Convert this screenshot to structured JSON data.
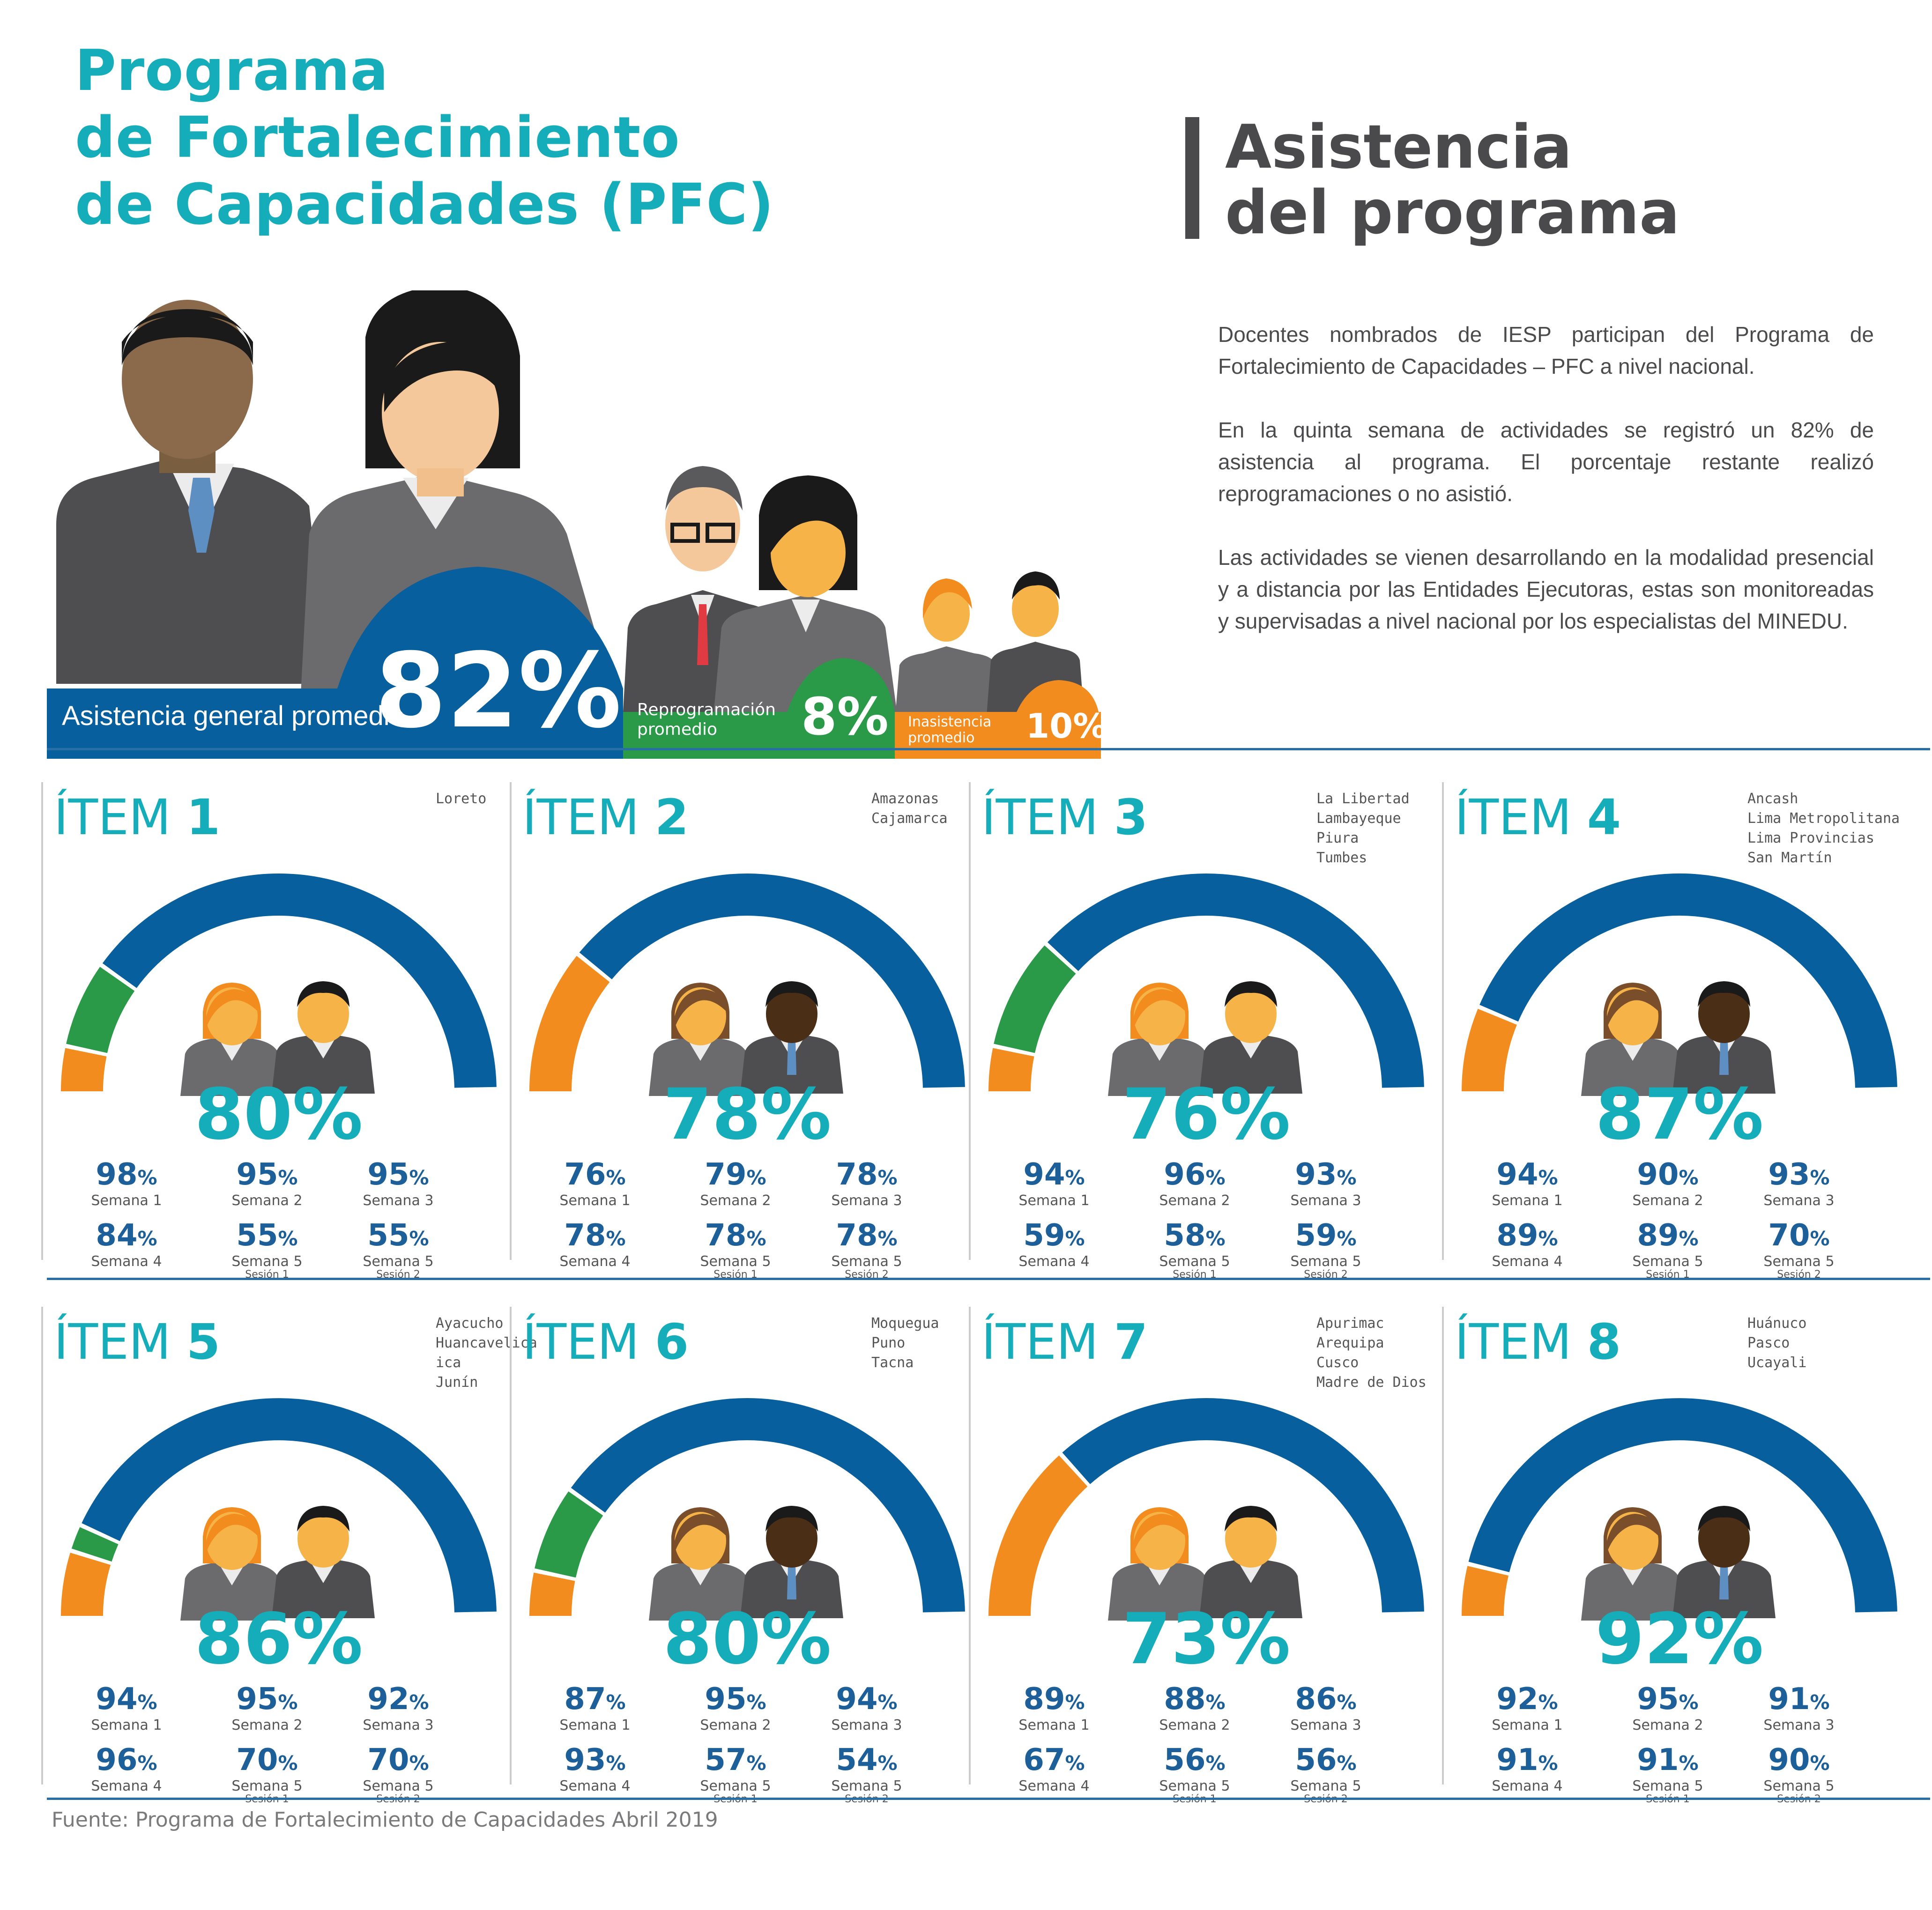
{
  "header": {
    "title_lines": [
      "Programa",
      "de Fortalecimiento",
      "de Capacidades (PFC)"
    ],
    "side_title_lines": [
      "Asistencia",
      "del programa"
    ]
  },
  "intro": [
    "Docentes nombrados de IESP participan del Programa de Fortalecimiento de Capacidades – PFC a nivel nacional.",
    "En la quinta semana de actividades se registró un 82% de asistencia al programa. El porcentaje restante realizó reprogramaciones o no asistió.",
    "Las actividades se vienen desarrollando en la modalidad presencial y a distancia por las Entidades Ejecutoras, estas son monitoreadas y supervisadas a nivel nacional por los especialistas del MINEDU."
  ],
  "summary": {
    "asistencia": {
      "label": "Asistencia general promedio",
      "value": "82%"
    },
    "reprogramacion": {
      "label_lines": [
        "Reprogramación",
        "promedio"
      ],
      "value": "8%"
    },
    "inasistencia": {
      "label_lines": [
        "Inasistencia",
        "promedio"
      ],
      "value": "10%"
    }
  },
  "colors": {
    "teal": "#15adb9",
    "blue": "#075f9d",
    "green": "#2a9a48",
    "orange": "#f28c1e",
    "dark_gray": "#4a4a4c"
  },
  "item_word": "ÍTEM",
  "items": [
    {
      "num": "1",
      "regions": [
        "Loreto"
      ],
      "total": "80%",
      "gauge": {
        "asistencia": 0.8,
        "reprogramacion": 0.13,
        "inasistencia": 0.07
      },
      "stats": [
        {
          "v": "98",
          "l": "Semana 1",
          "s": ""
        },
        {
          "v": "95",
          "l": "Semana 2",
          "s": ""
        },
        {
          "v": "95",
          "l": "Semana 3",
          "s": ""
        },
        {
          "v": "84",
          "l": "Semana 4",
          "s": ""
        },
        {
          "v": "55",
          "l": "Semana 5",
          "s": "Sesión 1"
        },
        {
          "v": "55",
          "l": "Semana 5",
          "s": "Sesión 2"
        }
      ]
    },
    {
      "num": "2",
      "regions": [
        "Amazonas",
        "Cajamarca"
      ],
      "total": "78%",
      "gauge": {
        "asistencia": 0.78,
        "reprogramacion": 0.0,
        "inasistencia": 0.22
      },
      "stats": [
        {
          "v": "76",
          "l": "Semana 1",
          "s": ""
        },
        {
          "v": "79",
          "l": "Semana 2",
          "s": ""
        },
        {
          "v": "78",
          "l": "Semana 3",
          "s": ""
        },
        {
          "v": "78",
          "l": "Semana 4",
          "s": ""
        },
        {
          "v": "78",
          "l": "Semana 5",
          "s": "Sesión 1"
        },
        {
          "v": "78",
          "l": "Semana 5",
          "s": "Sesión 2"
        }
      ]
    },
    {
      "num": "3",
      "regions": [
        "La Libertad",
        "Lambayeque",
        "Piura",
        "Tumbes"
      ],
      "total": "76%",
      "gauge": {
        "asistencia": 0.76,
        "reprogramacion": 0.17,
        "inasistencia": 0.07
      },
      "stats": [
        {
          "v": "94",
          "l": "Semana 1",
          "s": ""
        },
        {
          "v": "96",
          "l": "Semana 2",
          "s": ""
        },
        {
          "v": "93",
          "l": "Semana 3",
          "s": ""
        },
        {
          "v": "59",
          "l": "Semana 4",
          "s": ""
        },
        {
          "v": "58",
          "l": "Semana 5",
          "s": "Sesión 1"
        },
        {
          "v": "59",
          "l": "Semana 5",
          "s": "Sesión 2"
        }
      ]
    },
    {
      "num": "4",
      "regions": [
        "Ancash",
        "Lima Metropolitana",
        "Lima Provincias",
        "San Martín"
      ],
      "total": "87%",
      "gauge": {
        "asistencia": 0.87,
        "reprogramacion": 0.0,
        "inasistencia": 0.13
      },
      "stats": [
        {
          "v": "94",
          "l": "Semana 1",
          "s": ""
        },
        {
          "v": "90",
          "l": "Semana 2",
          "s": ""
        },
        {
          "v": "93",
          "l": "Semana 3",
          "s": ""
        },
        {
          "v": "89",
          "l": "Semana 4",
          "s": ""
        },
        {
          "v": "89",
          "l": "Semana 5",
          "s": "Sesión 1"
        },
        {
          "v": "70",
          "l": "Semana 5",
          "s": "Sesión 2"
        }
      ]
    },
    {
      "num": "5",
      "regions": [
        "Ayacucho",
        "Huancavelica",
        "ica",
        "Junín"
      ],
      "total": "86%",
      "gauge": {
        "asistencia": 0.86,
        "reprogramacion": 0.04,
        "inasistencia": 0.1
      },
      "stats": [
        {
          "v": "94",
          "l": "Semana 1",
          "s": ""
        },
        {
          "v": "95",
          "l": "Semana 2",
          "s": ""
        },
        {
          "v": "92",
          "l": "Semana 3",
          "s": ""
        },
        {
          "v": "96",
          "l": "Semana 4",
          "s": ""
        },
        {
          "v": "70",
          "l": "Semana 5",
          "s": "Sesión 1"
        },
        {
          "v": "70",
          "l": "Semana 5",
          "s": "Sesión 2"
        }
      ]
    },
    {
      "num": "6",
      "regions": [
        "Moquegua",
        "Puno",
        "Tacna"
      ],
      "total": "80%",
      "gauge": {
        "asistencia": 0.8,
        "reprogramacion": 0.13,
        "inasistencia": 0.07
      },
      "stats": [
        {
          "v": "87",
          "l": "Semana 1",
          "s": ""
        },
        {
          "v": "95",
          "l": "Semana 2",
          "s": ""
        },
        {
          "v": "94",
          "l": "Semana 3",
          "s": ""
        },
        {
          "v": "93",
          "l": "Semana 4",
          "s": ""
        },
        {
          "v": "57",
          "l": "Semana 5",
          "s": "Sesión 1"
        },
        {
          "v": "54",
          "l": "Semana 5",
          "s": "Sesión 2"
        }
      ]
    },
    {
      "num": "7",
      "regions": [
        "Apurimac",
        "Arequipa",
        "Cusco",
        "Madre de Dios"
      ],
      "total": "73%",
      "gauge": {
        "asistencia": 0.73,
        "reprogramacion": 0.0,
        "inasistencia": 0.27
      },
      "stats": [
        {
          "v": "89",
          "l": "Semana 1",
          "s": ""
        },
        {
          "v": "88",
          "l": "Semana 2",
          "s": ""
        },
        {
          "v": "86",
          "l": "Semana 3",
          "s": ""
        },
        {
          "v": "67",
          "l": "Semana 4",
          "s": ""
        },
        {
          "v": "56",
          "l": "Semana 5",
          "s": "Sesión 1"
        },
        {
          "v": "56",
          "l": "Semana 5",
          "s": "Sesión 2"
        }
      ]
    },
    {
      "num": "8",
      "regions": [
        "Huánuco",
        "Pasco",
        "Ucayali"
      ],
      "total": "92%",
      "gauge": {
        "asistencia": 0.92,
        "reprogramacion": 0.0,
        "inasistencia": 0.08
      },
      "stats": [
        {
          "v": "92",
          "l": "Semana 1",
          "s": ""
        },
        {
          "v": "95",
          "l": "Semana 2",
          "s": ""
        },
        {
          "v": "91",
          "l": "Semana 3",
          "s": ""
        },
        {
          "v": "91",
          "l": "Semana 4",
          "s": ""
        },
        {
          "v": "91",
          "l": "Semana 5",
          "s": "Sesión 1"
        },
        {
          "v": "90",
          "l": "Semana 5",
          "s": "Sesión 2"
        }
      ]
    }
  ],
  "pct_sign": "%",
  "source": "Fuente: Programa de Fortalecimiento de Capacidades Abril 2019"
}
